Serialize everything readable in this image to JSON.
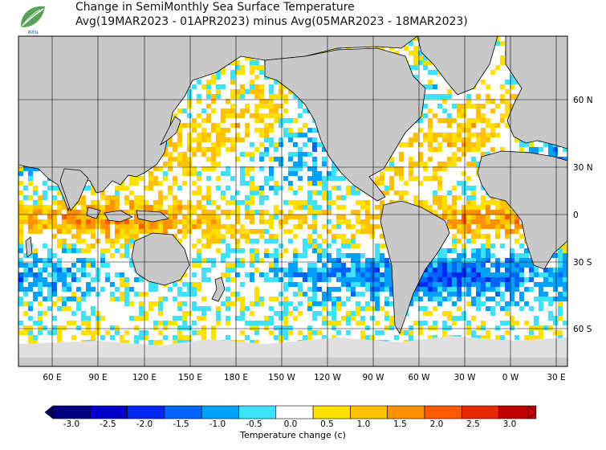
{
  "title": {
    "line1": "Change in SemiMonthly Sea Surface Temperature",
    "line2": "Avg(19MAR2023 - 01APR2023) minus Avg(05MAR2023 - 18MAR2023)"
  },
  "logo": {
    "text": "สสน"
  },
  "map": {
    "lon_labels": [
      "60 E",
      "90 E",
      "120 E",
      "150 E",
      "180 E",
      "150 W",
      "120 W",
      "90 W",
      "60 W",
      "30 W",
      "0 W",
      "30 E"
    ],
    "lat_labels": [
      "60 N",
      "30 N",
      "0",
      "30 S",
      "60 S"
    ],
    "land_color": "#c8c8c8",
    "ice_color": "#e0e0e0",
    "ocean_bg": "#ffffff",
    "grid_color": "#000000"
  },
  "colorbar": {
    "ticks": [
      "-3.0",
      "-2.5",
      "-2.0",
      "-1.5",
      "-1.0",
      "-0.5",
      "0.0",
      "0.5",
      "1.0",
      "1.5",
      "2.0",
      "2.5",
      "3.0"
    ],
    "colors": [
      "#000080",
      "#0000c8",
      "#0028f0",
      "#0064ff",
      "#00a0ff",
      "#40e0ff",
      "#ffffff",
      "#ffe000",
      "#ffc000",
      "#ff9000",
      "#ff5a00",
      "#e62800",
      "#c00000"
    ],
    "label": "Temperature change  (c)"
  }
}
